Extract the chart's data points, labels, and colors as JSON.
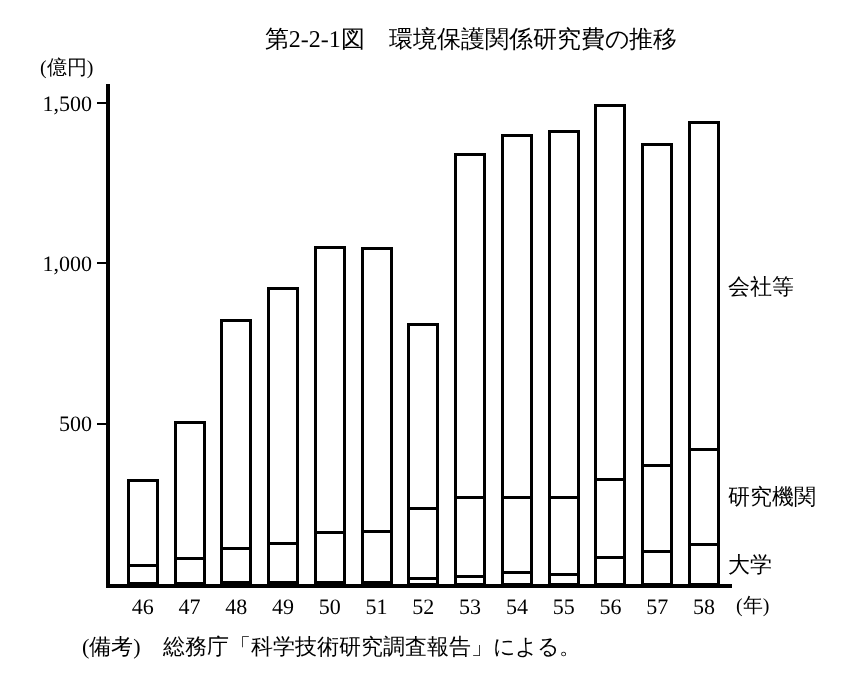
{
  "chart_data": {
    "type": "bar",
    "stacked": true,
    "title": "第2-2-1図　環境保護関係研究費の推移",
    "ylabel": "(億円)",
    "xlabel": "(年)",
    "categories": [
      "46",
      "47",
      "48",
      "49",
      "50",
      "51",
      "52",
      "53",
      "54",
      "55",
      "56",
      "57",
      "58"
    ],
    "series": [
      {
        "name": "大学",
        "color": "#ffffff",
        "values": [
          3,
          3,
          4,
          4,
          5,
          5,
          16,
          22,
          35,
          29,
          84,
          100,
          123
        ]
      },
      {
        "name": "研究機関",
        "color": "#ffffff",
        "values": [
          54,
          77,
          106,
          121,
          156,
          160,
          219,
          247,
          234,
          240,
          241,
          270,
          296
        ]
      },
      {
        "name": "会社等",
        "color": "#ffffff",
        "values": [
          265,
          424,
          711,
          798,
          890,
          882,
          575,
          1071,
          1131,
          1142,
          1169,
          1000,
          1021
        ]
      }
    ],
    "ylim": [
      0,
      1560
    ],
    "yticks": [
      500,
      {
        "value": 1000,
        "label": "1,000"
      },
      {
        "value": 1500,
        "label": "1,500"
      }
    ],
    "legend": false,
    "annotations": [
      "(備考)　総務庁「科学技術研究調査報告」による。"
    ]
  }
}
